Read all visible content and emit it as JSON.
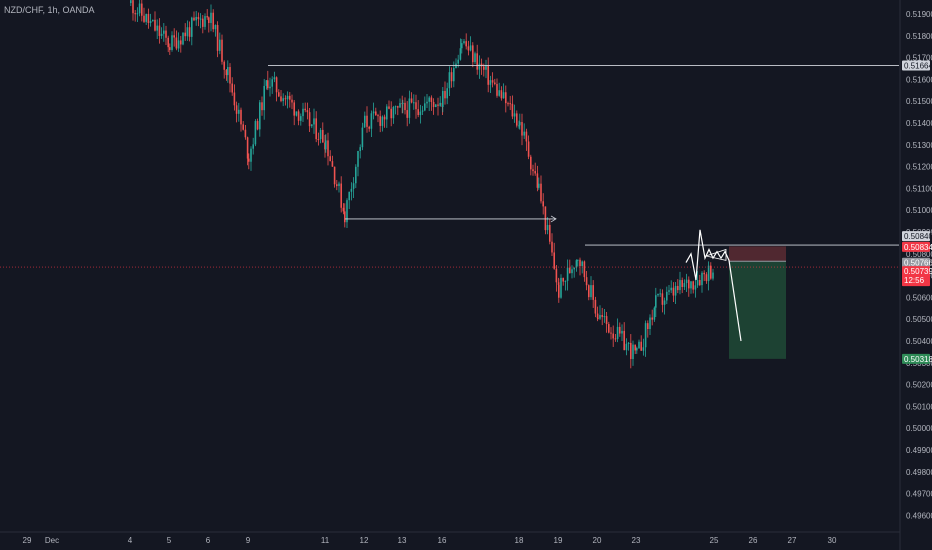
{
  "header": {
    "symbol": "NZD/CHF, 1h, OANDA"
  },
  "colors": {
    "background": "#141722",
    "bull": "#26a69a",
    "bear": "#ef5350",
    "level_line": "#d1d4dc",
    "current_price": "#f23645",
    "stop_zone": "#5b2b32",
    "target_zone": "#1e4a36",
    "target_badge": "#2e8b57"
  },
  "chart_data": {
    "type": "candlestick",
    "title": "NZD/CHF, 1h, OANDA",
    "xlabel": "",
    "ylabel": "",
    "ylim": [
      0.4956,
      0.5198
    ],
    "x_ticks": [
      "29",
      "Dec",
      "4",
      "5",
      "6",
      "9",
      "11",
      "12",
      "13",
      "16",
      "18",
      "19",
      "20",
      "23",
      "25",
      "26",
      "27",
      "30"
    ],
    "y_ticks": [
      "0.51900",
      "0.51800",
      "0.51700",
      "0.51600",
      "0.51500",
      "0.51400",
      "0.51300",
      "0.51200",
      "0.51100",
      "0.51000",
      "0.50900",
      "0.50800",
      "0.50700",
      "0.50600",
      "0.50500",
      "0.50400",
      "0.50300",
      "0.50200",
      "0.50100",
      "0.50000",
      "0.49900",
      "0.49800",
      "0.49700",
      "0.49600"
    ],
    "price_path": [
      {
        "date": "4",
        "price": 0.5195
      },
      {
        "date": "5",
        "price": 0.5176
      },
      {
        "date": "6",
        "price": 0.519
      },
      {
        "date": "6",
        "price": 0.5163
      },
      {
        "date": "9",
        "price": 0.5125
      },
      {
        "date": "9",
        "price": 0.516
      },
      {
        "date": "11",
        "price": 0.5132
      },
      {
        "date": "11",
        "price": 0.5098
      },
      {
        "date": "12",
        "price": 0.514
      },
      {
        "date": "13",
        "price": 0.5146
      },
      {
        "date": "16",
        "price": 0.5151
      },
      {
        "date": "16",
        "price": 0.5178
      },
      {
        "date": "18",
        "price": 0.514
      },
      {
        "date": "18",
        "price": 0.511
      },
      {
        "date": "19",
        "price": 0.5063
      },
      {
        "date": "19",
        "price": 0.508
      },
      {
        "date": "20",
        "price": 0.5052
      },
      {
        "date": "23",
        "price": 0.5033
      },
      {
        "date": "23",
        "price": 0.5057
      },
      {
        "date": "25",
        "price": 0.5074
      }
    ],
    "levels": [
      {
        "price": "0.51664",
        "label": "0.51664"
      },
      {
        "price": "0.50840",
        "label": "0.50840"
      }
    ],
    "current_price": {
      "price": "0.50739",
      "time_left": "12:56"
    },
    "position": {
      "type": "short",
      "entry": "0.50766",
      "stop": "0.50834",
      "target": "0.50318"
    },
    "grid": false
  }
}
